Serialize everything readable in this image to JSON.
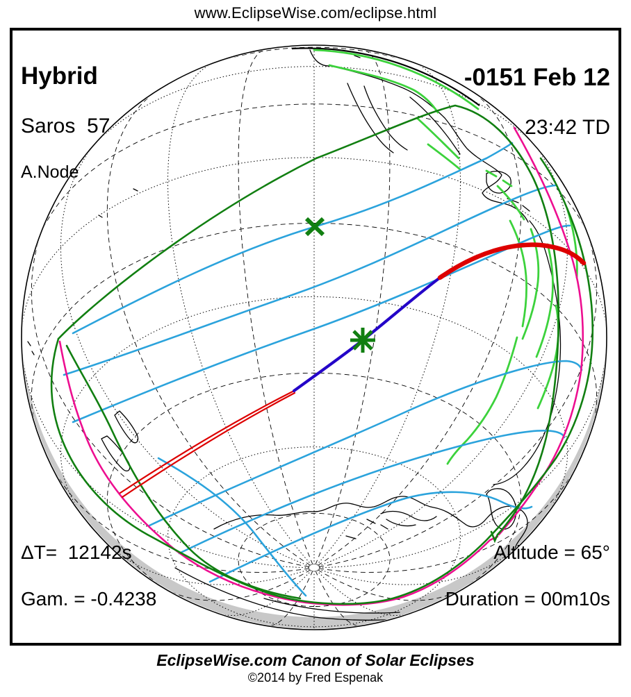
{
  "page": {
    "url_header": "www.EclipseWise.com/eclipse.html"
  },
  "eclipse_info": {
    "type": "Hybrid",
    "saros": "Saros  57",
    "node": "A.Node",
    "date": "-0151 Feb 12",
    "time": "23:42 TD",
    "delta_t": "ΔT=  12142s",
    "gamma": "Gam. = -0.4238",
    "altitude": "Altitude = 65°",
    "duration": "Duration = 00m10s"
  },
  "footer": {
    "title": "EclipseWise.com Canon of Solar Eclipses",
    "copyright": "©2014 by Fred Espenak"
  },
  "map": {
    "projection": "orthographic-globe",
    "markers": [
      {
        "name": "greatest-eclipse-marker",
        "symbol": "asterisk",
        "color": "#117f11"
      },
      {
        "name": "subsolar-point-marker",
        "symbol": "x",
        "color": "#117f11"
      }
    ],
    "legend_colors": {
      "penumbral_limit_green": "#117f11",
      "eclipse_contours_cyan": "#2ba3dc",
      "sunrise_sunset_magenta": "#ed0e90",
      "annular_path_red": "#dd0000",
      "total_path_blue": "#2404c8",
      "coast_highlight_green": "#3cd23c",
      "night_shade_gray": "#c8c8c8",
      "coastline_black": "#000000"
    }
  }
}
